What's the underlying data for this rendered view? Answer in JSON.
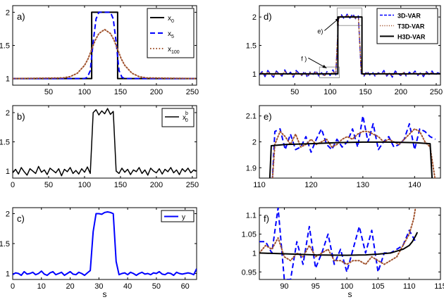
{
  "colors": {
    "black": "#000000",
    "blue": "#0000ff",
    "brown": "#a0522d"
  },
  "chart_data": [
    {
      "id": "a",
      "type": "line",
      "panel_label": "a)",
      "xlim": [
        0,
        256
      ],
      "ylim": [
        0.9,
        2.1
      ],
      "xticks": [
        50,
        100,
        150,
        200,
        250
      ],
      "yticks": [
        1,
        1.5,
        2
      ],
      "ytick_labels": [
        "1",
        "1.5",
        "2"
      ],
      "xlabel": "",
      "legend": {
        "placement": "top-right",
        "entries": [
          {
            "label": "x",
            "sub": "0"
          },
          {
            "label": "x",
            "sub": "5"
          },
          {
            "label": "x",
            "sub": "100"
          }
        ]
      },
      "series": [
        {
          "name": "x0",
          "color": "black",
          "style": "solid",
          "width": 2,
          "x": [
            0,
            110,
            110,
            146,
            146,
            256
          ],
          "y": [
            1,
            1,
            2,
            2,
            1,
            1
          ]
        },
        {
          "name": "x5",
          "color": "blue",
          "style": "dashed",
          "width": 2,
          "x": [
            0,
            100,
            104,
            108,
            112,
            116,
            120,
            124,
            128,
            132,
            136,
            140,
            144,
            148,
            152,
            156,
            256
          ],
          "y": [
            1,
            1,
            1.02,
            1.12,
            1.55,
            1.9,
            2,
            2,
            2,
            2,
            2,
            1.9,
            1.55,
            1.12,
            1.02,
            1,
            1
          ]
        },
        {
          "name": "x100",
          "color": "brown",
          "style": "dotted",
          "width": 2,
          "x": [
            0,
            70,
            80,
            90,
            100,
            105,
            110,
            115,
            120,
            128,
            136,
            141,
            146,
            151,
            156,
            166,
            176,
            186,
            256
          ],
          "y": [
            1,
            1.01,
            1.03,
            1.08,
            1.2,
            1.3,
            1.44,
            1.58,
            1.68,
            1.74,
            1.68,
            1.58,
            1.44,
            1.3,
            1.2,
            1.08,
            1.03,
            1.01,
            1
          ]
        }
      ]
    },
    {
      "id": "b",
      "type": "line",
      "panel_label": "b)",
      "xlim": [
        0,
        256
      ],
      "ylim": [
        0.88,
        2.12
      ],
      "xticks": [
        0,
        50,
        100,
        150,
        200,
        250
      ],
      "yticks": [
        1,
        1.5,
        2
      ],
      "ytick_labels": [
        "1",
        "1.5",
        "2"
      ],
      "xlabel": "",
      "legend": {
        "placement": "top-right",
        "entries": [
          {
            "label": "x",
            "sub": "0",
            "sup": "b"
          }
        ]
      },
      "series": [
        {
          "name": "x0b",
          "color": "black",
          "style": "solid",
          "width": 1.5,
          "x_start": 0,
          "x_step": 4,
          "y": [
            0.97,
            1.03,
            0.95,
            1.06,
            0.99,
            0.93,
            1.04,
            1.0,
            0.96,
            1.08,
            0.98,
            1.02,
            0.94,
            1.05,
            1.01,
            0.97,
            1.04,
            0.92,
            1.03,
            0.99,
            1.06,
            0.96,
            1.01,
            0.95,
            1.04,
            0.98,
            1.07,
            0.96,
            2.0,
            2.05,
            1.96,
            2.03,
            1.98,
            2.07,
            1.97,
            2.02,
            1.0,
            0.96,
            1.05,
            0.98,
            1.03,
            0.94,
            1.02,
            0.99,
            1.06,
            0.96,
            1.02,
            0.93,
            1.05,
            1.0,
            0.97,
            1.04,
            0.95,
            1.03,
            0.99,
            1.06,
            0.97,
            1.02,
            0.94,
            1.04,
            0.99,
            1.05,
            0.97,
            1.02,
            1.0
          ]
        }
      ]
    },
    {
      "id": "c",
      "type": "line",
      "panel_label": "c)",
      "xlim": [
        0,
        64
      ],
      "ylim": [
        0.9,
        2.1
      ],
      "xticks": [
        0,
        10,
        20,
        30,
        40,
        50,
        60
      ],
      "yticks": [
        1,
        1.5,
        2
      ],
      "ytick_labels": [
        "1",
        "1.5",
        "2"
      ],
      "xlabel": "s",
      "legend": {
        "placement": "top-right",
        "entries": [
          {
            "label": "y"
          }
        ]
      },
      "series": [
        {
          "name": "y",
          "color": "blue",
          "style": "solid",
          "width": 2,
          "x_start": 0,
          "x_step": 1,
          "y": [
            0.98,
            1.01,
            1.0,
            0.97,
            1.03,
            0.99,
            1.0,
            1.02,
            0.98,
            1.0,
            1.04,
            0.99,
            0.97,
            1.01,
            1.03,
            0.98,
            1.0,
            1.02,
            0.97,
            1.0,
            1.03,
            0.99,
            0.98,
            1.02,
            1.0,
            0.97,
            1.01,
            1.05,
            1.7,
            2.0,
            2.0,
            1.99,
            2.02,
            2.03,
            2.02,
            2.0,
            1.2,
            0.98,
            1.0,
            1.01,
            0.98,
            1.02,
            1.0,
            0.97,
            1.0,
            1.02,
            0.99,
            1.0,
            0.98,
            1.01,
            1.0,
            1.03,
            0.99,
            0.98,
            1.01,
            1.0,
            0.97,
            1.02,
            1.0,
            0.99,
            1.0,
            1.01,
            1.0,
            0.98,
            1.08
          ]
        }
      ]
    },
    {
      "id": "d",
      "type": "line",
      "panel_label": "d)",
      "xlim": [
        0,
        256
      ],
      "ylim": [
        0.8,
        2.2
      ],
      "xticks": [
        50,
        100,
        150,
        200,
        250
      ],
      "yticks": [
        1,
        1.5,
        2
      ],
      "ytick_labels": [
        "1",
        "1.5",
        "2"
      ],
      "xlabel": "",
      "legend": {
        "placement": "top-right",
        "entries": [
          {
            "label": "3D-VAR"
          },
          {
            "label": "T3D-VAR"
          },
          {
            "label": "H3D-VAR"
          }
        ]
      },
      "annotations": [
        {
          "text": "e)",
          "x": 100,
          "y": 1.76,
          "ax": 113,
          "ay": 1.98
        },
        {
          "text": "f )",
          "x": 77,
          "y": 1.28,
          "ax": 95,
          "ay": 1.1
        }
      ],
      "boxes": [
        {
          "x0": 110,
          "x1": 145,
          "y0": 1.85,
          "y1": 2.16
        },
        {
          "x0": 85,
          "x1": 113,
          "y0": 0.93,
          "y1": 1.12
        }
      ],
      "series": [
        {
          "name": "3D-VAR",
          "color": "blue",
          "style": "dashed",
          "width": 1.5,
          "x_start": 0,
          "x_step": 4,
          "y": [
            0.98,
            1.04,
            0.95,
            1.06,
            0.99,
            0.94,
            1.05,
            1.0,
            0.96,
            1.07,
            0.98,
            1.03,
            0.94,
            1.06,
            1.01,
            0.97,
            1.05,
            0.93,
            1.04,
            0.99,
            1.06,
            0.96,
            1.02,
            0.95,
            1.05,
            0.97,
            1.07,
            0.97,
            2.0,
            2.04,
            1.96,
            2.05,
            1.98,
            2.06,
            1.97,
            2.02,
            1.0,
            0.96,
            1.05,
            0.98,
            1.03,
            0.95,
            1.02,
            0.99,
            1.06,
            0.96,
            1.02,
            0.94,
            1.05,
            1.0,
            0.97,
            1.04,
            0.95,
            1.03,
            0.99,
            1.05,
            0.97,
            1.02,
            0.95,
            1.04,
            0.99,
            1.05,
            0.97,
            1.02,
            1.0
          ]
        },
        {
          "name": "T3D-VAR",
          "color": "brown",
          "style": "dotted",
          "width": 1.5,
          "x_start": 0,
          "x_step": 4,
          "y": [
            1.0,
            1.02,
            0.98,
            1.03,
            1.0,
            0.97,
            1.03,
            1.0,
            0.98,
            1.04,
            0.99,
            1.01,
            0.97,
            1.03,
            1.0,
            0.98,
            1.02,
            0.97,
            1.02,
            1.0,
            1.03,
            0.98,
            1.01,
            0.97,
            1.02,
            0.99,
            1.03,
            1.02,
            1.97,
            2.02,
            1.99,
            2.03,
            2.0,
            2.02,
            1.98,
            2.0,
            1.02,
            0.98,
            1.02,
            0.99,
            1.01,
            0.98,
            1.01,
            1.0,
            1.02,
            0.98,
            1.01,
            0.97,
            1.02,
            1.0,
            0.98,
            1.02,
            0.98,
            1.01,
            1.0,
            1.02,
            0.98,
            1.01,
            0.98,
            1.02,
            1.0,
            1.02,
            0.99,
            1.01,
            1.0
          ]
        },
        {
          "name": "H3D-VAR",
          "color": "black",
          "style": "solid",
          "width": 2,
          "x": [
            0,
            111,
            111,
            145,
            145,
            256
          ],
          "y": [
            1,
            1,
            2,
            2,
            1,
            1
          ]
        }
      ]
    },
    {
      "id": "e",
      "type": "line",
      "panel_label": "e)",
      "xlim": [
        110,
        145
      ],
      "ylim": [
        1.86,
        2.14
      ],
      "xticks": [
        110,
        120,
        130,
        140
      ],
      "yticks": [
        1.9,
        2,
        2.1
      ],
      "ytick_labels": [
        "1.9",
        "2",
        "2.1"
      ],
      "xlabel": "",
      "series": [
        {
          "name": "3D-VAR",
          "color": "blue",
          "style": "dashed",
          "width": 2,
          "x": [
            112.5,
            113,
            114,
            115,
            116,
            117,
            118,
            119,
            120,
            121,
            122,
            123,
            124,
            125,
            126,
            127,
            128,
            129,
            130,
            131,
            132,
            133,
            134,
            135,
            136,
            137,
            138,
            139,
            140,
            141,
            142,
            143,
            144
          ],
          "y": [
            1.85,
            2.04,
            2.05,
            1.97,
            2.03,
            1.97,
            1.98,
            2.02,
            1.96,
            2.01,
            2.05,
            1.99,
            1.97,
            2.01,
            1.98,
            2.0,
            2.05,
            1.98,
            2.1,
            2.0,
            2.07,
            1.97,
            2.0,
            2.02,
            1.98,
            1.99,
            2.01,
            2.07,
            1.97,
            2.05,
            2.04,
            2.02,
            2.01
          ]
        },
        {
          "name": "T3D-VAR",
          "color": "brown",
          "style": "dotted",
          "width": 2,
          "x": [
            112.5,
            113,
            114,
            115,
            116,
            117,
            118,
            119,
            120,
            121,
            122,
            123,
            124,
            125,
            126,
            127,
            128,
            129,
            130,
            131,
            132,
            133,
            134,
            135,
            136,
            137,
            138,
            139,
            140,
            141,
            142,
            143,
            144
          ],
          "y": [
            1.85,
            1.99,
            2.04,
            2.02,
            1.99,
            2.03,
            1.98,
            1.99,
            2.01,
            1.99,
            2.0,
            2.01,
            1.98,
            1.99,
            2.01,
            2.02,
            2.01,
            2.03,
            2.04,
            2.04,
            2.03,
            2.02,
            2.0,
            2.01,
            2.0,
            1.99,
            2.01,
            2.03,
            2.05,
            2.04,
            2.0,
            1.98,
            1.85
          ]
        },
        {
          "name": "H3D-VAR",
          "color": "black",
          "style": "solid",
          "width": 2,
          "x": [
            112,
            112.3,
            115,
            120,
            125,
            130,
            135,
            140,
            143,
            143.4
          ],
          "y": [
            1.85,
            1.985,
            1.99,
            1.993,
            1.997,
            1.999,
            1.999,
            1.997,
            1.993,
            1.85
          ]
        }
      ]
    },
    {
      "id": "f",
      "type": "line",
      "panel_label": "f)",
      "xlim": [
        86,
        115
      ],
      "ylim": [
        0.93,
        1.12
      ],
      "xticks": [
        90,
        95,
        100,
        105,
        110,
        115
      ],
      "yticks": [
        0.95,
        1,
        1.05,
        1.1
      ],
      "ytick_labels": [
        "0.95",
        "1",
        "1.05",
        "1.1"
      ],
      "xlabel": "s",
      "series": [
        {
          "name": "3D-VAR",
          "color": "blue",
          "style": "dashed",
          "width": 2,
          "x": [
            86,
            87,
            88,
            89,
            90,
            91,
            92,
            93,
            94,
            95,
            96,
            97,
            98,
            99,
            100,
            101,
            102,
            103,
            104,
            105,
            106,
            107,
            108,
            109,
            110,
            111
          ],
          "y": [
            1.03,
            1.03,
            1.0,
            1.12,
            0.93,
            0.93,
            1.03,
            0.97,
            1.07,
            0.96,
            1.0,
            1.05,
            0.97,
            1.01,
            0.95,
            1.01,
            1.07,
            1.0,
            1.06,
            0.95,
            1.0,
            1.0,
            1.01,
            1.02,
            1.06,
            1.03
          ]
        },
        {
          "name": "T3D-VAR",
          "color": "brown",
          "style": "dotted",
          "width": 2,
          "x": [
            86,
            87,
            88,
            89,
            90,
            91,
            92,
            93,
            94,
            95,
            96,
            97,
            98,
            99,
            100,
            101,
            102,
            103,
            104,
            105,
            106,
            107,
            108,
            109,
            110,
            110.7,
            111
          ],
          "y": [
            1.0,
            1.02,
            1.01,
            1.04,
            0.99,
            0.98,
            1.0,
            0.99,
            1.02,
            0.99,
            1.0,
            1.01,
            0.98,
            0.98,
            0.97,
            0.98,
            0.98,
            0.97,
            0.99,
            0.98,
            0.97,
            0.98,
            0.99,
            1.02,
            1.05,
            1.09,
            1.12
          ]
        },
        {
          "name": "H3D-VAR",
          "color": "black",
          "style": "solid",
          "width": 2,
          "x": [
            86,
            90,
            95,
            100,
            103,
            105,
            107,
            108,
            109,
            110,
            110.5,
            111,
            111.3
          ],
          "y": [
            1.0,
            0.998,
            0.995,
            0.994,
            0.995,
            0.997,
            1.0,
            1.005,
            1.01,
            1.02,
            1.03,
            1.045,
            1.055
          ]
        }
      ]
    }
  ]
}
